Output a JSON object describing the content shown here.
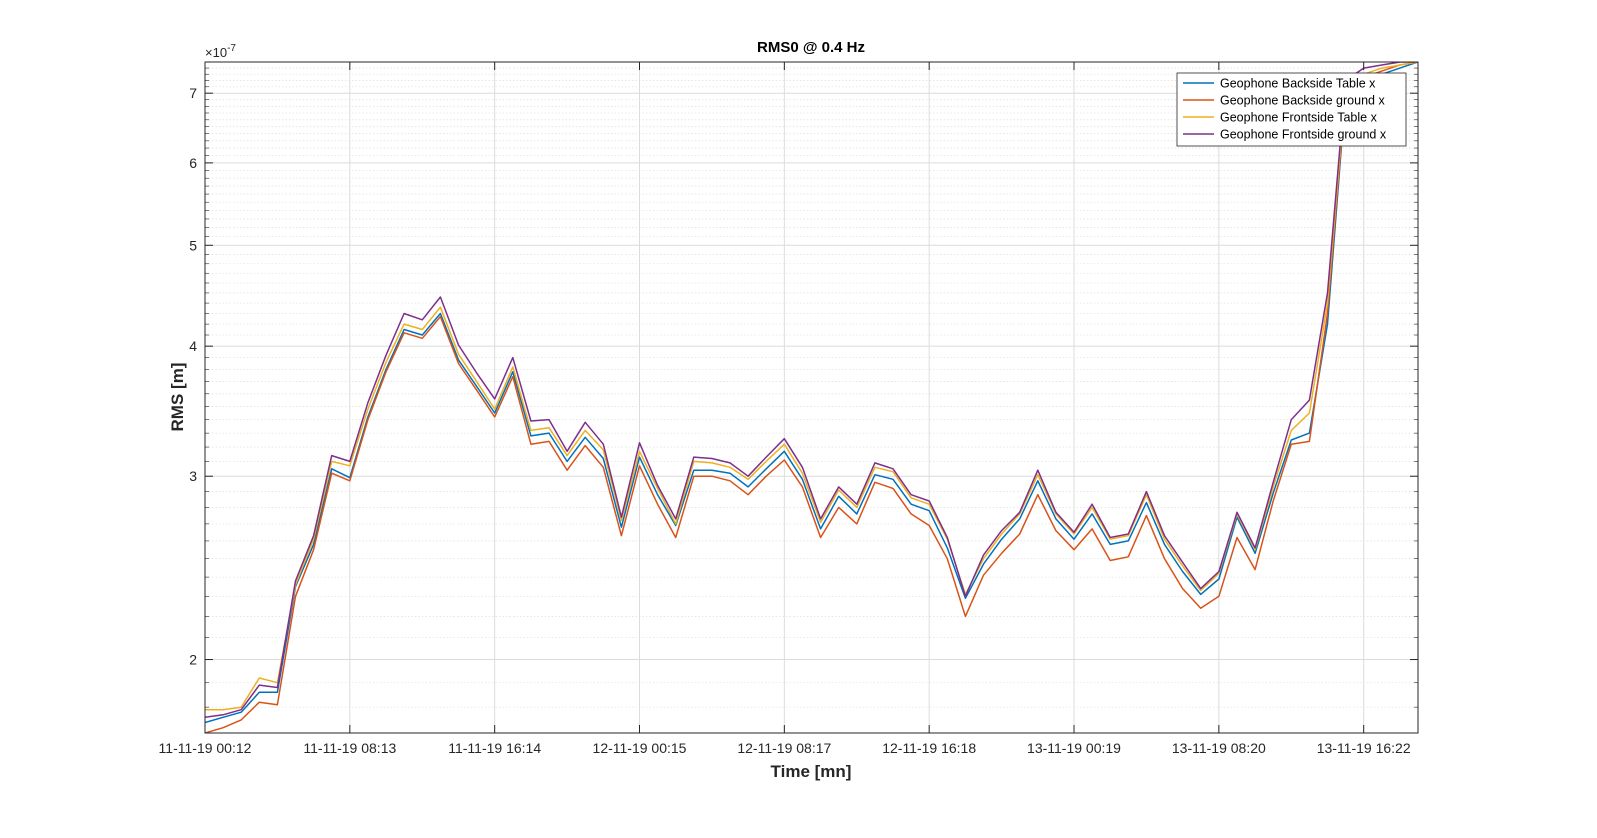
{
  "chart_data": {
    "type": "line",
    "title": "RMS0 @ 0.4 Hz",
    "xlabel": "Time [mn]",
    "ylabel": "RMS [m]",
    "y_exponent_label": "×10",
    "y_exponent_power": "-7",
    "y_scale": "log",
    "ylim": [
      1.7,
      7.5
    ],
    "x_count": 68,
    "x_tick_indices": [
      0,
      8,
      16,
      24,
      32,
      40,
      48,
      56,
      64
    ],
    "x_tick_labels": [
      "11-11-19 00:12",
      "11-11-19 08:13",
      "11-11-19 16:14",
      "12-11-19 00:15",
      "12-11-19 08:17",
      "12-11-19 16:18",
      "13-11-19 00:19",
      "13-11-19 08:20",
      "13-11-19 16:22"
    ],
    "y_major_ticks": [
      2,
      3,
      4,
      5,
      6,
      7
    ],
    "y_minor_ticks": [
      1.8,
      1.9,
      2.1,
      2.2,
      2.3,
      2.4,
      2.5,
      2.6,
      2.7,
      2.8,
      2.9,
      3.1,
      3.2,
      3.3,
      3.4,
      3.5,
      3.6,
      3.7,
      3.8,
      3.9,
      4.1,
      4.2,
      4.3,
      4.4,
      4.5,
      4.6,
      4.7,
      4.8,
      4.9,
      5.1,
      5.2,
      5.3,
      5.4,
      5.5,
      5.6,
      5.7,
      5.8,
      5.9,
      6.1,
      6.2,
      6.3,
      6.4,
      6.5,
      6.6,
      6.7,
      6.8,
      6.9,
      7.1,
      7.2,
      7.3,
      7.4
    ],
    "grid": true,
    "legend_position": "top-right",
    "series": [
      {
        "name": "Geophone Backside Table x",
        "color": "#0072BD",
        "values": [
          1.74,
          1.76,
          1.78,
          1.86,
          1.86,
          2.35,
          2.58,
          3.05,
          2.99,
          3.42,
          3.8,
          4.15,
          4.1,
          4.3,
          3.88,
          3.66,
          3.45,
          3.78,
          3.28,
          3.3,
          3.1,
          3.27,
          3.12,
          2.68,
          3.13,
          2.88,
          2.69,
          3.04,
          3.04,
          3.02,
          2.93,
          3.05,
          3.17,
          2.98,
          2.67,
          2.87,
          2.76,
          3.01,
          2.98,
          2.82,
          2.78,
          2.56,
          2.29,
          2.47,
          2.61,
          2.73,
          2.97,
          2.73,
          2.61,
          2.76,
          2.58,
          2.6,
          2.83,
          2.58,
          2.43,
          2.31,
          2.39,
          2.74,
          2.53,
          2.89,
          3.25,
          3.3,
          4.2,
          7.0,
          7.2,
          7.3,
          7.4,
          7.5
        ]
      },
      {
        "name": "Geophone Backside ground x",
        "color": "#D95319",
        "values": [
          1.7,
          1.72,
          1.75,
          1.82,
          1.81,
          2.3,
          2.55,
          3.02,
          2.97,
          3.4,
          3.78,
          4.12,
          4.07,
          4.27,
          3.85,
          3.63,
          3.42,
          3.74,
          3.22,
          3.24,
          3.04,
          3.21,
          3.06,
          2.63,
          3.07,
          2.82,
          2.62,
          3.0,
          3.0,
          2.97,
          2.88,
          3.0,
          3.11,
          2.93,
          2.62,
          2.8,
          2.7,
          2.96,
          2.92,
          2.76,
          2.69,
          2.5,
          2.2,
          2.41,
          2.53,
          2.64,
          2.88,
          2.66,
          2.55,
          2.67,
          2.49,
          2.51,
          2.75,
          2.5,
          2.34,
          2.24,
          2.3,
          2.62,
          2.44,
          2.84,
          3.22,
          3.24,
          4.3,
          7.05,
          7.25,
          7.35,
          7.45,
          7.5
        ]
      },
      {
        "name": "Geophone Frontside Table x",
        "color": "#EDB120",
        "values": [
          1.79,
          1.79,
          1.8,
          1.92,
          1.9,
          2.36,
          2.61,
          3.1,
          3.07,
          3.48,
          3.86,
          4.2,
          4.15,
          4.36,
          3.93,
          3.7,
          3.48,
          3.82,
          3.32,
          3.34,
          3.14,
          3.32,
          3.18,
          2.72,
          3.17,
          2.92,
          2.7,
          3.1,
          3.09,
          3.06,
          2.98,
          3.1,
          3.22,
          3.02,
          2.71,
          2.91,
          2.8,
          3.06,
          3.03,
          2.86,
          2.82,
          2.61,
          2.31,
          2.5,
          2.64,
          2.76,
          3.01,
          2.76,
          2.64,
          2.8,
          2.61,
          2.63,
          2.88,
          2.61,
          2.46,
          2.33,
          2.42,
          2.76,
          2.55,
          2.93,
          3.32,
          3.45,
          4.4,
          7.1,
          7.3,
          7.4,
          7.45,
          7.5
        ]
      },
      {
        "name": "Geophone Frontside ground x",
        "color": "#7E2F8E",
        "values": [
          1.76,
          1.77,
          1.79,
          1.89,
          1.88,
          2.38,
          2.63,
          3.14,
          3.1,
          3.53,
          3.92,
          4.3,
          4.24,
          4.46,
          4.01,
          3.77,
          3.56,
          3.9,
          3.39,
          3.4,
          3.17,
          3.38,
          3.22,
          2.74,
          3.23,
          2.94,
          2.73,
          3.13,
          3.12,
          3.09,
          3.0,
          3.13,
          3.26,
          3.06,
          2.73,
          2.93,
          2.82,
          3.09,
          3.05,
          2.88,
          2.84,
          2.62,
          2.3,
          2.52,
          2.66,
          2.77,
          3.04,
          2.77,
          2.65,
          2.82,
          2.62,
          2.64,
          2.9,
          2.63,
          2.48,
          2.34,
          2.43,
          2.77,
          2.56,
          2.96,
          3.4,
          3.55,
          4.5,
          7.2,
          7.4,
          7.45,
          7.5,
          7.5
        ]
      }
    ]
  }
}
